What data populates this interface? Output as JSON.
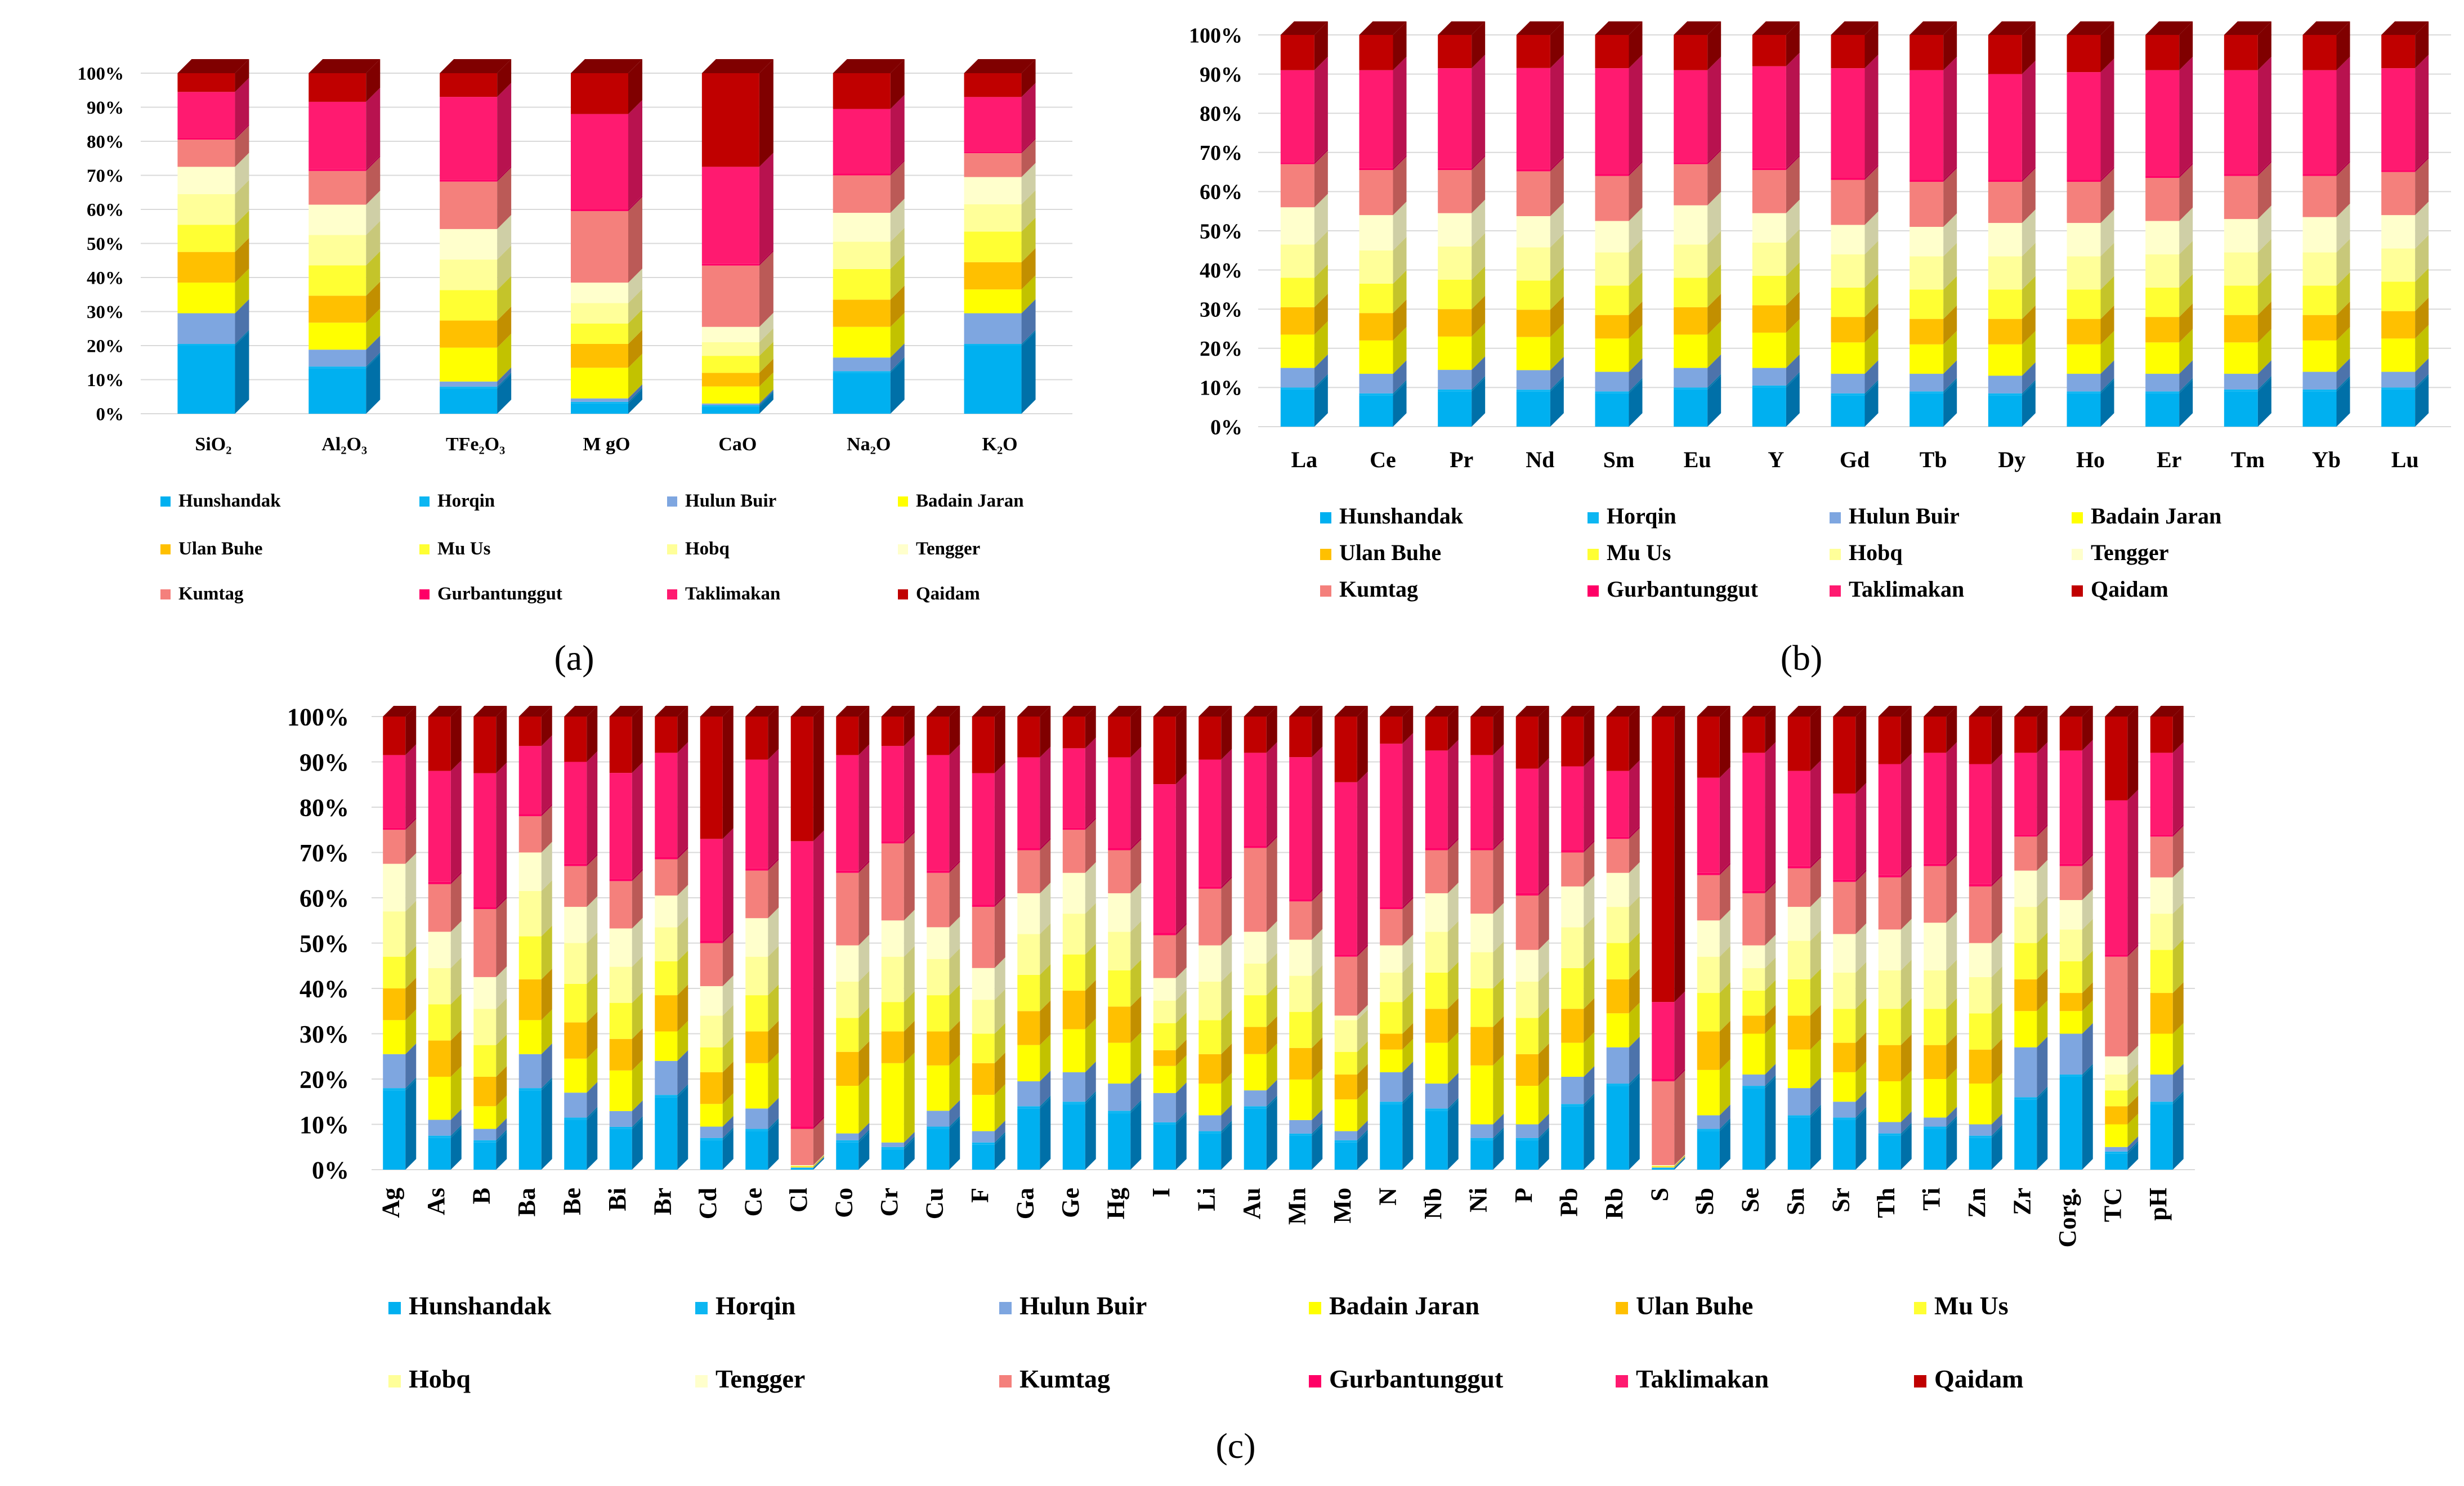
{
  "series": [
    {
      "name": "Hunshandak",
      "color": "#00b0f0",
      "dark": "#0070a8"
    },
    {
      "name": "Horqin",
      "color": "#0cb6f2",
      "dark": "#0878ac"
    },
    {
      "name": "Hulun Buir",
      "color": "#7ea6e0",
      "dark": "#4d73ab"
    },
    {
      "name": "Badain Jaran",
      "color": "#ffff00",
      "dark": "#c2c200"
    },
    {
      "name": "Ulan Buhe",
      "color": "#ffc000",
      "dark": "#c28f00"
    },
    {
      "name": "Mu Us",
      "color": "#ffff33",
      "dark": "#c4c42a"
    },
    {
      "name": "Hobq",
      "color": "#ffff99",
      "dark": "#c8c87a"
    },
    {
      "name": "Tengger",
      "color": "#ffffcc",
      "dark": "#cfcfa6"
    },
    {
      "name": "Kumtag",
      "color": "#f4807c",
      "dark": "#bb5a57"
    },
    {
      "name": "Gurbantunggut",
      "color": "#ff0066",
      "dark": "#b30047"
    },
    {
      "name": "Taklimakan",
      "color": "#ff1a70",
      "dark": "#b8124f"
    },
    {
      "name": "Qaidam",
      "color": "#c00000",
      "dark": "#800000"
    }
  ],
  "chart_data": [
    {
      "type": "bar",
      "stacked": "percent",
      "panel_label": "(a)",
      "title": "",
      "xlabel": "",
      "ylabel": "",
      "ylim": [
        0,
        100
      ],
      "yticks": [
        "0%",
        "10%",
        "20%",
        "30%",
        "40%",
        "50%",
        "60%",
        "70%",
        "80%",
        "90%",
        "100%"
      ],
      "categories": [
        "SiO₂",
        "Al₂O₃",
        "TFe₂O₃",
        "M gO",
        "CaO",
        "Na₂O",
        "K₂O"
      ],
      "values": [
        [
          20,
          0.5,
          9,
          9,
          9,
          8,
          9,
          8,
          8,
          0.5,
          13.5,
          5.5
        ],
        [
          13.5,
          0.5,
          5,
          8,
          8,
          9,
          9,
          9,
          10,
          0.5,
          20,
          8.5
        ],
        [
          7.5,
          0.5,
          1.5,
          10,
          8,
          9,
          9,
          9,
          14,
          0.5,
          24.5,
          7
        ],
        [
          3,
          0.5,
          1,
          9,
          7,
          6,
          6,
          6,
          21,
          0.5,
          28,
          12
        ],
        [
          2,
          0.5,
          0.5,
          5,
          4,
          5,
          4,
          4.5,
          18,
          0.5,
          28.5,
          27.5
        ],
        [
          12,
          0.5,
          4,
          9,
          8,
          9,
          8,
          8.5,
          11,
          0.5,
          19,
          10.5
        ],
        [
          20,
          0.5,
          9,
          7,
          8,
          9,
          8,
          8,
          7,
          0.5,
          16,
          7
        ]
      ],
      "legend": "bottom"
    },
    {
      "type": "bar",
      "stacked": "percent",
      "panel_label": "(b)",
      "title": "",
      "xlabel": "",
      "ylabel": "",
      "ylim": [
        0,
        100
      ],
      "yticks": [
        "0%",
        "10%",
        "20%",
        "30%",
        "40%",
        "50%",
        "60%",
        "70%",
        "80%",
        "90%",
        "100%"
      ],
      "categories": [
        "La",
        "Ce",
        "Pr",
        "Nd",
        "Sm",
        "Eu",
        "Y",
        "Gd",
        "Tb",
        "Dy",
        "Ho",
        "Er",
        "Tm",
        "Yb",
        "Lu"
      ],
      "values": [
        [
          9.5,
          0.5,
          5,
          8.5,
          7,
          7.5,
          8.5,
          9.5,
          11,
          0.5,
          23.5,
          9
        ],
        [
          8,
          0.5,
          5,
          8.5,
          7,
          7.5,
          8.5,
          9,
          11.5,
          0.5,
          25,
          9
        ],
        [
          9,
          0.5,
          5,
          8.5,
          7,
          7.5,
          8.5,
          8.5,
          11,
          0.5,
          25.5,
          8.5
        ],
        [
          9,
          0.5,
          5,
          8.5,
          7,
          7.5,
          8.5,
          8,
          11.5,
          0.5,
          26,
          8.5
        ],
        [
          8.5,
          0.5,
          5,
          8.5,
          6,
          7.5,
          8.5,
          8,
          11.5,
          0.5,
          27,
          8.5
        ],
        [
          9.5,
          0.5,
          5,
          8.5,
          7,
          7.5,
          8.5,
          10,
          10.5,
          0.5,
          23.5,
          9
        ],
        [
          10,
          0.5,
          4.5,
          9,
          7,
          7.5,
          8.5,
          7.5,
          11,
          0.5,
          26,
          8
        ],
        [
          8,
          0.5,
          5,
          8,
          6.5,
          7.5,
          8.5,
          7.5,
          11.5,
          0.5,
          28,
          8.5
        ],
        [
          8.5,
          0.5,
          4.5,
          7.5,
          6.5,
          7.5,
          8.5,
          7.5,
          11.5,
          0.5,
          28,
          9
        ],
        [
          8,
          0.5,
          4.5,
          8,
          6.5,
          7.5,
          8.5,
          8.5,
          10.5,
          0.5,
          27,
          10
        ],
        [
          8.5,
          0.5,
          4.5,
          7.5,
          6.5,
          7.5,
          8.5,
          8.5,
          10.5,
          0.5,
          27.5,
          9.5
        ],
        [
          8.5,
          0.5,
          4.5,
          8,
          6.5,
          7.5,
          8.5,
          8.5,
          11,
          0.5,
          27,
          9
        ],
        [
          9,
          0.5,
          4,
          8,
          7,
          7.5,
          8.5,
          8.5,
          11,
          0.5,
          26.5,
          9
        ],
        [
          9,
          0.5,
          4.5,
          8,
          6.5,
          7.5,
          8.5,
          9,
          10.5,
          0.5,
          26.5,
          9
        ],
        [
          9.5,
          0.5,
          4,
          8.5,
          7,
          7.5,
          8.5,
          8.5,
          11,
          0.5,
          26,
          8.5
        ]
      ],
      "legend": "bottom"
    },
    {
      "type": "bar",
      "stacked": "percent",
      "panel_label": "(c)",
      "title": "",
      "xlabel": "",
      "ylabel": "",
      "ylim": [
        0,
        100
      ],
      "yticks": [
        "0%",
        "10%",
        "20%",
        "30%",
        "40%",
        "50%",
        "60%",
        "70%",
        "80%",
        "90%",
        "100%"
      ],
      "categories": [
        "Ag",
        "As",
        "B",
        "Ba",
        "Be",
        "Bi",
        "Br",
        "Cd",
        "Ce",
        "Cl",
        "Co",
        "Cr",
        "Cu",
        "F",
        "Ga",
        "Ge",
        "Hg",
        "I",
        "Li",
        "Au",
        "Mn",
        "Mo",
        "N",
        "Nb",
        "Ni",
        "P",
        "Pb",
        "Rb",
        "S",
        "Sb",
        "Se",
        "Sn",
        "Sr",
        "Th",
        "Ti",
        "Zn",
        "Zr",
        "Corg.",
        "TC",
        "pH"
      ],
      "values": [
        [
          17.5,
          0.5,
          7.5,
          7.5,
          7,
          7,
          10,
          10.5,
          7.5,
          0.5,
          16,
          8.5
        ],
        [
          7,
          0.5,
          3.5,
          9.5,
          8,
          8,
          8,
          8,
          10.5,
          0.5,
          24.5,
          12
        ],
        [
          6,
          0.5,
          2.5,
          5,
          6.5,
          7,
          8,
          7,
          15,
          0.5,
          29.5,
          12.5
        ],
        [
          17.5,
          0.5,
          7.5,
          7.5,
          9,
          9.5,
          10,
          8.5,
          8,
          0.5,
          15,
          6.5
        ],
        [
          11,
          0.5,
          5.5,
          7.5,
          8,
          8.5,
          9,
          8,
          9,
          0.5,
          22.5,
          10
        ],
        [
          9,
          0.5,
          3.5,
          9,
          7,
          8,
          8,
          8.5,
          10.5,
          0.5,
          23.5,
          12.5
        ],
        [
          16,
          0.5,
          7.5,
          6.5,
          8,
          7.5,
          7.5,
          7,
          8,
          0.5,
          23,
          8
        ],
        [
          6.5,
          0.5,
          2.5,
          5,
          7,
          5.5,
          7,
          6.5,
          9.5,
          0.5,
          22.5,
          27
        ],
        [
          8.5,
          0.5,
          4.5,
          10,
          7,
          8,
          8.5,
          8.5,
          10.5,
          0.5,
          24,
          9.5
        ],
        [
          0.3,
          0.1,
          0.1,
          0.1,
          0.1,
          0.1,
          0.1,
          0.1,
          8,
          0.5,
          63,
          27.5
        ],
        [
          6,
          0.5,
          1.5,
          10.5,
          7.5,
          7.5,
          8,
          8,
          16,
          0.5,
          25.5,
          8.5
        ],
        [
          4.5,
          0.5,
          1,
          17.5,
          7,
          6.5,
          10,
          8,
          17,
          0.5,
          21,
          6.5
        ],
        [
          9,
          0.5,
          3.5,
          10,
          7.5,
          8,
          8,
          7,
          12,
          0.5,
          25.5,
          8.5
        ],
        [
          5.5,
          0.5,
          2.5,
          8,
          7,
          6.5,
          7.5,
          7,
          13.5,
          0.5,
          29,
          12.5
        ],
        [
          13.5,
          0.5,
          5.5,
          8,
          7.5,
          8,
          9,
          9,
          9.5,
          0.5,
          20,
          9
        ],
        [
          14.5,
          0.5,
          6.5,
          9.5,
          8.5,
          8,
          9,
          9,
          9.5,
          0.5,
          17.5,
          7
        ],
        [
          12.5,
          0.5,
          6,
          9,
          8,
          8,
          8.5,
          8.5,
          9.5,
          0.5,
          20,
          9
        ],
        [
          10,
          0.5,
          6.5,
          6,
          3.5,
          6,
          5,
          5,
          9.5,
          0.5,
          33,
          15
        ],
        [
          8,
          0.5,
          3.5,
          7,
          6.5,
          7.5,
          8.5,
          8,
          12.5,
          0.5,
          28,
          9.5
        ],
        [
          13.5,
          0.5,
          3.5,
          8,
          6,
          7,
          7,
          7,
          18.5,
          0.5,
          20.5,
          8
        ],
        [
          7.5,
          0.5,
          3,
          9,
          7,
          8,
          8,
          8,
          8.5,
          0.5,
          31.5,
          9
        ],
        [
          6,
          0.5,
          2,
          7,
          5.5,
          5,
          7,
          1,
          13,
          0.5,
          38,
          14.5
        ],
        [
          14.5,
          0.5,
          6.5,
          5,
          3.5,
          7,
          6.5,
          6,
          8,
          0.5,
          36,
          6
        ],
        [
          13,
          0.5,
          5.5,
          9,
          7.5,
          8,
          9,
          8.5,
          9.5,
          0.5,
          21.5,
          7.5
        ],
        [
          6.5,
          0.5,
          3,
          13,
          8.5,
          8.5,
          8,
          8.5,
          14,
          0.5,
          20.5,
          8.5
        ],
        [
          6.5,
          0.5,
          3,
          8.5,
          7,
          8,
          8,
          7,
          12,
          0.5,
          27.5,
          11.5
        ],
        [
          14,
          0.5,
          6,
          7.5,
          7.5,
          9,
          9,
          9,
          7.5,
          0.5,
          18.5,
          11
        ],
        [
          18.5,
          0.5,
          8,
          7.5,
          7.5,
          8,
          8,
          7.5,
          7.5,
          0.5,
          14.5,
          12
        ],
        [
          0.3,
          0.1,
          0.1,
          0.1,
          0.1,
          0.1,
          0.1,
          0.1,
          18.5,
          0.5,
          17,
          63
        ],
        [
          8.5,
          0.5,
          3,
          10,
          8.5,
          8.5,
          8,
          8,
          10,
          0.5,
          21,
          13.5
        ],
        [
          18,
          0.5,
          2.5,
          9,
          4,
          5.5,
          5,
          5,
          11.5,
          0.5,
          30.5,
          8
        ],
        [
          11.5,
          0.5,
          6,
          8.5,
          7.5,
          8,
          8.5,
          7.5,
          8.5,
          0.5,
          21,
          12
        ],
        [
          11,
          0.5,
          3.5,
          6.5,
          6.5,
          7.5,
          8,
          8.5,
          11.5,
          0.5,
          19,
          17
        ],
        [
          7.5,
          0.5,
          2.5,
          9,
          8,
          8,
          8.5,
          9,
          11.5,
          0.5,
          24.5,
          10.5
        ],
        [
          9,
          0.5,
          2,
          8.5,
          7.5,
          8,
          8.5,
          10.5,
          12.5,
          0.5,
          24.5,
          8
        ],
        [
          7,
          0.5,
          2.5,
          9,
          7.5,
          8,
          8,
          7.5,
          12.5,
          0.5,
          26.5,
          10.5
        ],
        [
          15.5,
          0.5,
          11,
          8,
          7,
          8,
          8,
          8,
          7.5,
          0.5,
          18,
          8
        ],
        [
          20.5,
          0.5,
          9,
          5,
          4,
          7,
          7,
          6.5,
          7.5,
          0.5,
          25,
          7.5
        ],
        [
          3.5,
          0.5,
          1,
          5,
          4,
          3.5,
          3.5,
          4,
          22,
          0.5,
          34,
          18.5
        ],
        [
          14.5,
          0.5,
          6,
          9,
          9,
          9.5,
          8,
          8,
          9,
          0.5,
          18,
          8
        ]
      ],
      "legend": "bottom"
    }
  ]
}
